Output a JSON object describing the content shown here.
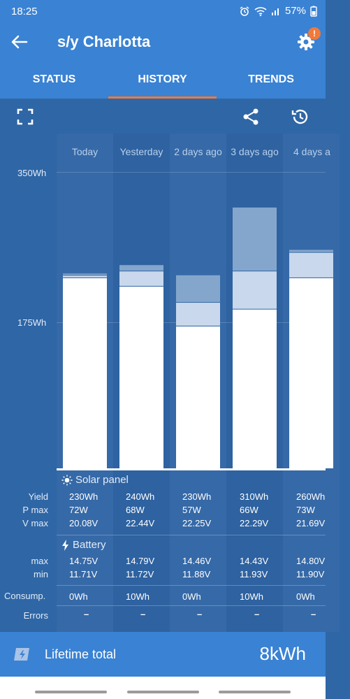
{
  "status_bar": {
    "time": "18:25",
    "battery": "57%",
    "icons": [
      "alarm-icon",
      "wifi-icon",
      "signal-icon",
      "battery-icon"
    ]
  },
  "app_bar": {
    "title": "s/y Charlotta",
    "settings_badge": "!"
  },
  "tabs": [
    {
      "label": "STATUS"
    },
    {
      "label": "HISTORY"
    },
    {
      "label": "TRENDS"
    }
  ],
  "toolbar": {
    "icons": [
      "fullscreen-icon",
      "share-icon",
      "history-icon"
    ]
  },
  "history": {
    "axis": {
      "top_label": "350Wh",
      "mid_label": "175Wh"
    },
    "days": [
      {
        "label": "Today"
      },
      {
        "label": "Yesterday"
      },
      {
        "label": "2 days ago"
      },
      {
        "label": "3 days ago"
      },
      {
        "label": "4 days a"
      }
    ],
    "solar": {
      "title": "Solar panel",
      "labels": {
        "yield": "Yield",
        "pmax": "P max",
        "vmax": "V max"
      },
      "yield": [
        "230Wh",
        "240Wh",
        "230Wh",
        "310Wh",
        "260Wh"
      ],
      "pmax": [
        "72W",
        "68W",
        "57W",
        "66W",
        "73W"
      ],
      "vmax": [
        "20.08V",
        "22.44V",
        "22.25V",
        "22.29V",
        "21.69V"
      ]
    },
    "battery": {
      "title": "Battery",
      "labels": {
        "max": "max",
        "min": "min"
      },
      "max": [
        "14.75V",
        "14.79V",
        "14.46V",
        "14.43V",
        "14.80V"
      ],
      "min": [
        "11.71V",
        "11.72V",
        "11.88V",
        "11.93V",
        "11.90V"
      ]
    },
    "consumption": {
      "label": "Consump.",
      "values": [
        "0Wh",
        "10Wh",
        "0Wh",
        "10Wh",
        "0Wh"
      ]
    },
    "errors": {
      "label": "Errors",
      "values": [
        "–",
        "–",
        "–",
        "–",
        "–"
      ]
    }
  },
  "chart_data": {
    "type": "bar",
    "stacked": true,
    "categories": [
      "Today",
      "Yesterday",
      "2 days ago",
      "3 days ago",
      "4 days a"
    ],
    "ylim": [
      0,
      350
    ],
    "yticks": [
      "175Wh",
      "350Wh"
    ],
    "series": [
      {
        "values": [
          225,
          215,
          168,
          188,
          225
        ],
        "color": "#ffffff"
      },
      {
        "values": [
          3,
          18,
          28,
          45,
          30
        ],
        "color": "#c9d8ec"
      },
      {
        "values": [
          2,
          7,
          32,
          75,
          3
        ],
        "color": "#85a6cc"
      }
    ]
  },
  "lifetime": {
    "label": "Lifetime total",
    "value": "8kWh"
  },
  "colors": {
    "accent": "#f07a3a",
    "header_blue": "#3a82d3",
    "content_blue": "#2f66a5"
  }
}
